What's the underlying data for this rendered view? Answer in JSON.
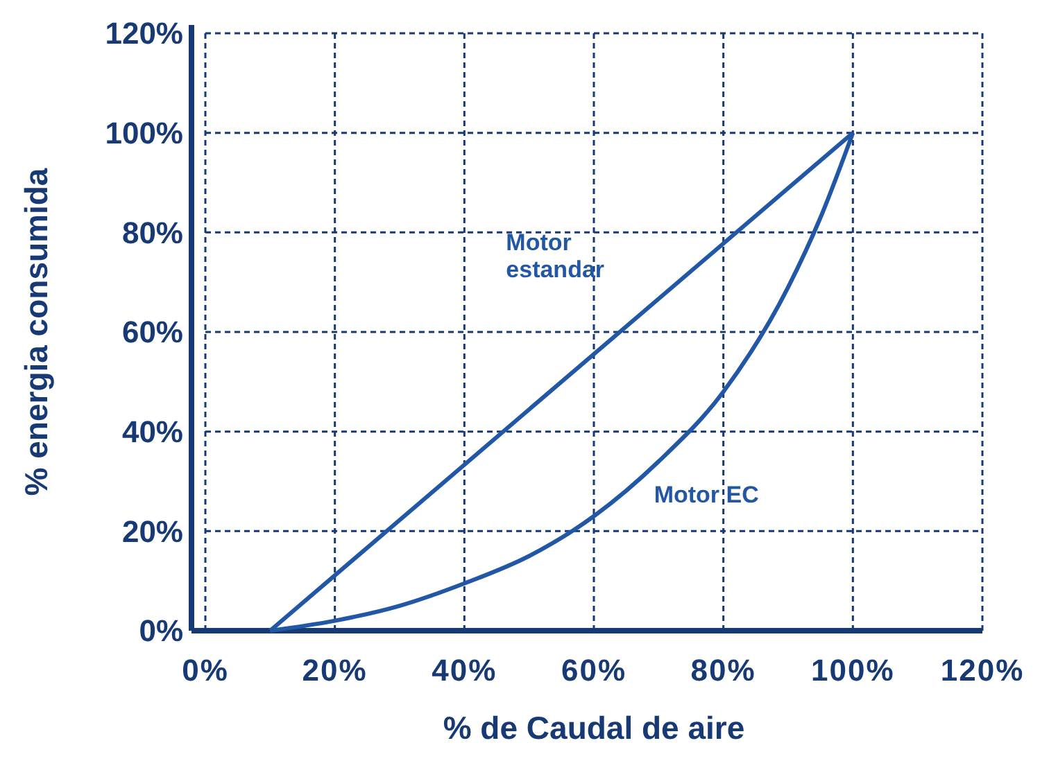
{
  "chart_data": {
    "type": "line",
    "xlabel": "% de Caudal de aire",
    "ylabel": "% energia consumida",
    "xlim": [
      0,
      120
    ],
    "ylim": [
      0,
      120
    ],
    "xticks": [
      {
        "value": 0,
        "label": "0%"
      },
      {
        "value": 20,
        "label": "20%"
      },
      {
        "value": 40,
        "label": "40%"
      },
      {
        "value": 60,
        "label": "60%"
      },
      {
        "value": 80,
        "label": "80%"
      },
      {
        "value": 100,
        "label": "100%"
      },
      {
        "value": 120,
        "label": "120%"
      }
    ],
    "yticks": [
      {
        "value": 0,
        "label": "0%"
      },
      {
        "value": 20,
        "label": "20%"
      },
      {
        "value": 40,
        "label": "40%"
      },
      {
        "value": 60,
        "label": "60%"
      },
      {
        "value": 80,
        "label": "80%"
      },
      {
        "value": 100,
        "label": "100%"
      },
      {
        "value": 120,
        "label": "120%"
      }
    ],
    "grid": true,
    "legend": false,
    "marker": "none",
    "line_style": "solid",
    "series": [
      {
        "name": "Motor\nestandar",
        "color": "#2257a5",
        "x": [
          10,
          100
        ],
        "values": [
          0,
          100
        ]
      },
      {
        "name": "Motor EC",
        "color": "#2257a5",
        "x": [
          10,
          20,
          30,
          40,
          50,
          60,
          70,
          80,
          90,
          95,
          100
        ],
        "values": [
          0,
          2,
          5,
          9.5,
          15,
          23,
          34,
          48,
          69,
          83,
          100
        ]
      }
    ]
  }
}
